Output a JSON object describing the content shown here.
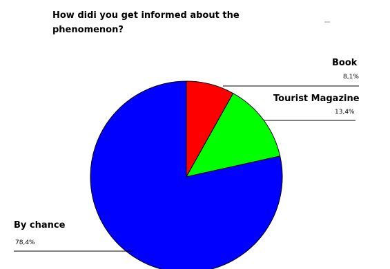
{
  "chart_data": {
    "type": "pie",
    "title": "How didi you get informed about the phenomenon?",
    "title_lines": [
      "How didi you get informed about the",
      "phenomenon?"
    ],
    "slices": [
      {
        "label": "Book",
        "value": 8.1,
        "value_label": "8,1%",
        "color": "#ff0000"
      },
      {
        "label": "Tourist Magazine",
        "value": 13.4,
        "value_label": "13,4%",
        "color": "#00ff00"
      },
      {
        "label": "By chance",
        "value": 78.4,
        "value_label": "78,4%",
        "color": "#0000ff"
      }
    ],
    "legend": "none"
  }
}
